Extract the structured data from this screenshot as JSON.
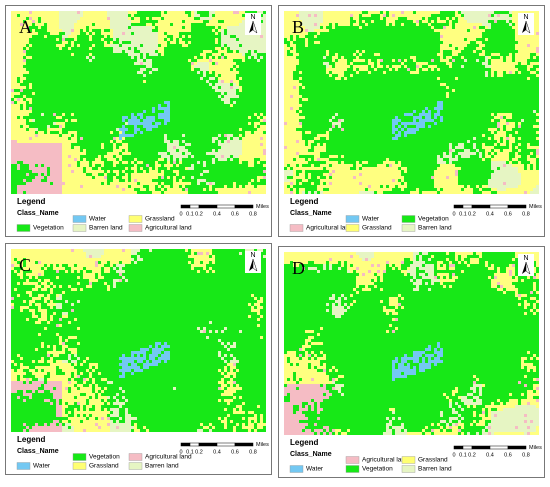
{
  "panels": [
    {
      "label": "A",
      "north": "N",
      "legend": {
        "title": "Legend",
        "field": "Class_Name",
        "items": [
          {
            "name": "Water",
            "color": "#73c8f2"
          },
          {
            "name": "Grassland",
            "color": "#ffff73"
          },
          {
            "name": "Vegetation",
            "color": "#17e817"
          },
          {
            "name": "Barren land",
            "color": "#e6f5c3"
          },
          {
            "name": "Agricultural land",
            "color": "#f5bcc4"
          }
        ]
      },
      "scale": {
        "ticks": [
          "0",
          "0.1",
          "0.2",
          "0.4",
          "0.6",
          "0.8"
        ],
        "unit": "Miles"
      }
    },
    {
      "label": "B",
      "north": "N",
      "legend": {
        "title": "Legend",
        "field": "Class_Name",
        "items": [
          {
            "name": "Water",
            "color": "#73c8f2"
          },
          {
            "name": "Vegetation",
            "color": "#17e817"
          },
          {
            "name": "Agricultural land",
            "color": "#f5bcc4"
          },
          {
            "name": "Grassland",
            "color": "#ffff73"
          },
          {
            "name": "Barren land",
            "color": "#e6f5c3"
          }
        ]
      },
      "scale": {
        "ticks": [
          "0",
          "0.1",
          "0.2",
          "0.4",
          "0.6",
          "0.8"
        ],
        "unit": "Miles"
      }
    },
    {
      "label": "C",
      "north": "N",
      "legend": {
        "title": "Legend",
        "field": "Class_Name",
        "items": [
          {
            "name": "Vegetation",
            "color": "#17e817"
          },
          {
            "name": "Agricultural land",
            "color": "#f5bcc4"
          },
          {
            "name": "Water",
            "color": "#73c8f2"
          },
          {
            "name": "Grassland",
            "color": "#ffff73"
          },
          {
            "name": "Barren land",
            "color": "#e6f5c3"
          }
        ]
      },
      "scale": {
        "ticks": [
          "0",
          "0.1",
          "0.2",
          "0.4",
          "0.6",
          "0.8"
        ],
        "unit": "Miles"
      }
    },
    {
      "label": "D",
      "north": "N",
      "legend": {
        "title": "Legend",
        "field": "Class_Name",
        "items": [
          {
            "name": "Agricultural land",
            "color": "#f5bcc4"
          },
          {
            "name": "Grassland",
            "color": "#ffff73"
          },
          {
            "name": "Water",
            "color": "#73c8f2"
          },
          {
            "name": "Vegetation",
            "color": "#17e817"
          },
          {
            "name": "Barren land",
            "color": "#e6f5c3"
          }
        ]
      },
      "scale": {
        "ticks": [
          "0",
          "0.1",
          "0.2",
          "0.4",
          "0.6",
          "0.8"
        ],
        "unit": "Miles"
      }
    }
  ]
}
